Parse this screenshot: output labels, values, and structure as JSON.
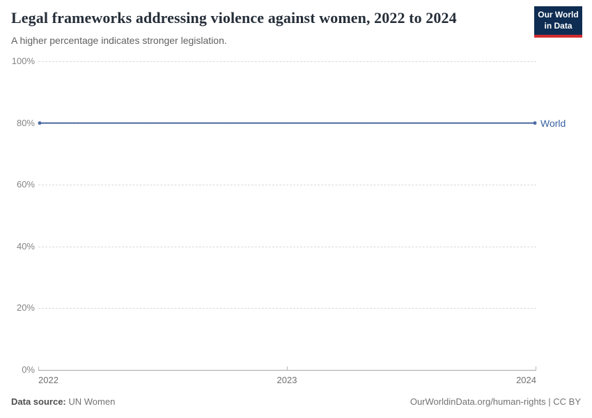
{
  "header": {
    "title": "Legal frameworks addressing violence against women, 2022 to 2024",
    "subtitle": "A higher percentage indicates stronger legislation.",
    "logo_line1": "Our World",
    "logo_line2": "in Data"
  },
  "chart_data": {
    "type": "line",
    "title": "Legal frameworks addressing violence against women, 2022 to 2024",
    "subtitle": "A higher percentage indicates stronger legislation.",
    "x": [
      2022,
      2023,
      2024
    ],
    "xtick_labels": [
      "2022",
      "2023",
      "2024"
    ],
    "series": [
      {
        "name": "World",
        "values": [
          80,
          80,
          80
        ],
        "color": "#4d6ba3"
      }
    ],
    "ylim": [
      0,
      100
    ],
    "ytick_labels": [
      "100%",
      "80%",
      "60%",
      "40%",
      "20%",
      "0%"
    ],
    "grid": "dashed horizontal gridlines",
    "legend": "label at right end of line"
  },
  "series_label": "World",
  "footer": {
    "source_label": "Data source:",
    "source_value": " UN Women",
    "attribution": "OurWorldinData.org/human-rights | CC BY"
  },
  "colors": {
    "line": "#4d6ba3",
    "series_label_text": "#3a62a3",
    "logo_bg": "#0f2d52",
    "logo_accent": "#d42b2f",
    "grid": "#d9d9d9",
    "axis": "#a5a5a5"
  }
}
